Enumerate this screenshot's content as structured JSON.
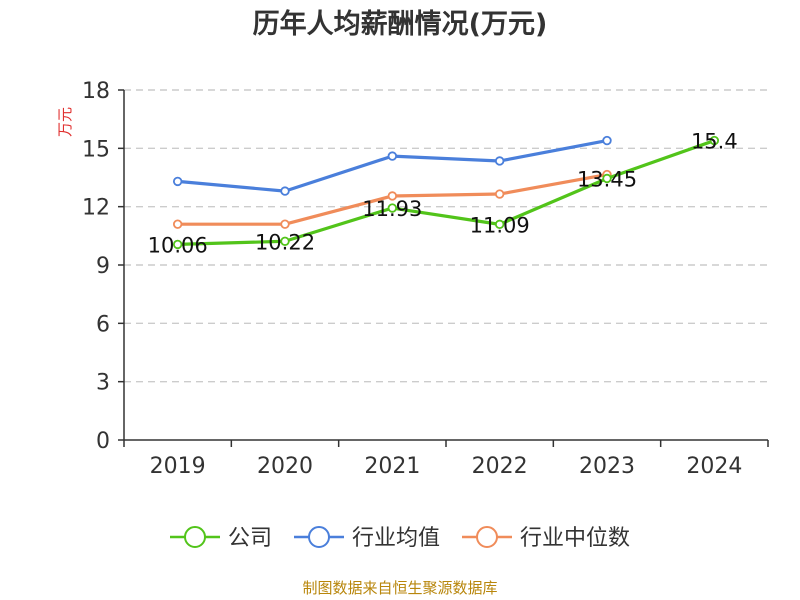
{
  "chart_data": {
    "type": "line",
    "title": "历年人均薪酬情况(万元)",
    "ylabel": "万元",
    "xlabel": "",
    "categories": [
      "2019",
      "2020",
      "2021",
      "2022",
      "2023",
      "2024"
    ],
    "ylim": [
      0,
      18
    ],
    "yticks": [
      0,
      3,
      6,
      9,
      12,
      15,
      18
    ],
    "grid": true,
    "legend_position": "bottom-center",
    "series": [
      {
        "name": "公司",
        "color": "#52c41a",
        "values": [
          10.06,
          10.22,
          11.93,
          11.09,
          13.45,
          15.4
        ],
        "labels": [
          "10.06",
          "10.22",
          "11.93",
          "11.09",
          "13.45",
          "15.4"
        ]
      },
      {
        "name": "行业均值",
        "color": "#4a7fdb",
        "values": [
          13.3,
          12.8,
          14.6,
          14.35,
          15.4,
          null
        ]
      },
      {
        "name": "行业中位数",
        "color": "#f08c5a",
        "values": [
          11.1,
          11.1,
          12.55,
          12.65,
          13.65,
          null
        ]
      }
    ]
  },
  "footer": {
    "source": "制图数据来自恒生聚源数据库"
  }
}
